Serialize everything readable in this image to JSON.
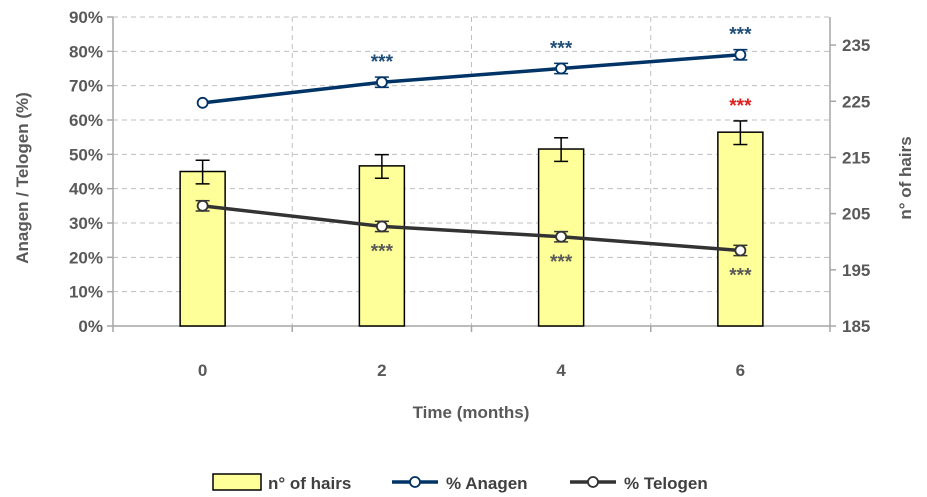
{
  "chart_data": {
    "type": "bar",
    "title": "",
    "xlabel": "Time (months)",
    "ylabel_left": "Anagen / Telogen (%)",
    "ylabel_right": "n° of hairs",
    "categories": [
      "0",
      "2",
      "4",
      "6"
    ],
    "y_left_range": [
      0,
      90
    ],
    "y_left_ticks": [
      "0%",
      "10%",
      "20%",
      "30%",
      "40%",
      "50%",
      "60%",
      "70%",
      "80%",
      "90%"
    ],
    "y_right_range": [
      185,
      240
    ],
    "y_right_ticks": [
      "185",
      "195",
      "205",
      "215",
      "225",
      "235"
    ],
    "grid": true,
    "legend_position": "bottom",
    "colors": {
      "bar_fill": "#FFFF99",
      "bar_stroke": "#000000",
      "anagen": "#003366",
      "telogen": "#333333",
      "star_anagen": "#1F4E79",
      "star_telogen": "#595959",
      "star_highlight": "#E02020",
      "grid": "#BFBFBF",
      "axis": "#A6A6A6"
    },
    "series": [
      {
        "name": "n° of hairs",
        "type": "bar",
        "axis": "right",
        "values": [
          212.5,
          213.5,
          216.5,
          219.5
        ],
        "error": [
          2.0,
          2.0,
          2.0,
          2.0
        ],
        "error_low": [
          2.2,
          2.2,
          2.2,
          2.2
        ]
      },
      {
        "name": "% Anagen",
        "type": "line",
        "axis": "left",
        "values": [
          65,
          71,
          75,
          79
        ],
        "error": [
          0,
          1.5,
          1.5,
          1.5
        ],
        "significance": [
          "",
          "***",
          "***",
          "***"
        ]
      },
      {
        "name": "% Telogen",
        "type": "line",
        "axis": "left",
        "values": [
          35,
          29,
          26,
          22
        ],
        "error": [
          1.5,
          1.5,
          1.5,
          1.5
        ],
        "significance": [
          "",
          "***",
          "***",
          "***"
        ]
      }
    ],
    "bar_significance": [
      "",
      "",
      "",
      "***"
    ]
  }
}
